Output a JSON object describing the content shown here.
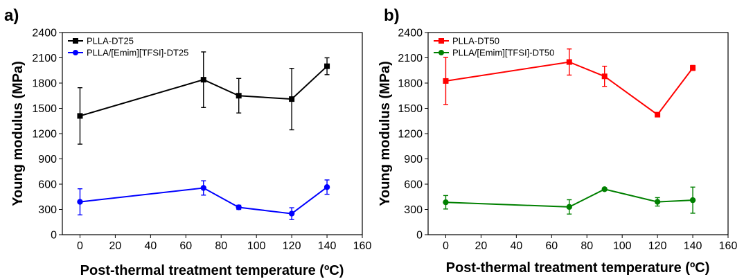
{
  "chart_data": [
    {
      "type": "line",
      "panel_label": "a)",
      "xlabel": "Post-thermal treatment temperature (ºC)",
      "ylabel": "Young modulus (MPa)",
      "xlim": [
        -10,
        160
      ],
      "ylim": [
        0,
        2400
      ],
      "xticks": [
        "0",
        "20",
        "40",
        "60",
        "80",
        "100",
        "120",
        "140",
        "160"
      ],
      "yticks": [
        "0",
        "300",
        "600",
        "900",
        "1200",
        "1500",
        "1800",
        "2100",
        "2400"
      ],
      "legend_position": "top-left",
      "series": [
        {
          "name": "PLLA-DT25",
          "color": "#000000",
          "marker": "square",
          "x": [
            0,
            70,
            90,
            120,
            140
          ],
          "y": [
            1410,
            1840,
            1650,
            1610,
            2000
          ],
          "err": [
            335,
            330,
            205,
            365,
            100
          ]
        },
        {
          "name": "PLLA/[Emim][TFSI]-DT25",
          "color": "#0000ff",
          "marker": "circle",
          "x": [
            0,
            70,
            90,
            120,
            140
          ],
          "y": [
            390,
            555,
            325,
            250,
            565
          ],
          "err": [
            155,
            85,
            25,
            70,
            85
          ]
        }
      ]
    },
    {
      "type": "line",
      "panel_label": "b)",
      "xlabel": "Post-thermal treatment temperature (ºC)",
      "ylabel": "Young modulus (MPa)",
      "xlim": [
        -10,
        160
      ],
      "ylim": [
        0,
        2400
      ],
      "xticks": [
        "0",
        "20",
        "40",
        "60",
        "80",
        "100",
        "120",
        "140",
        "160"
      ],
      "yticks": [
        "0",
        "300",
        "600",
        "900",
        "1200",
        "1500",
        "1800",
        "2100",
        "2400"
      ],
      "legend_position": "top-left",
      "series": [
        {
          "name": "PLLA-DT50",
          "color": "#ff0000",
          "marker": "square",
          "x": [
            0,
            70,
            90,
            120,
            140
          ],
          "y": [
            1825,
            2050,
            1880,
            1425,
            1980
          ],
          "err": [
            280,
            155,
            120,
            15,
            30
          ]
        },
        {
          "name": "PLLA/[Emim][TFSI]-DT50",
          "color": "#008000",
          "marker": "circle",
          "x": [
            0,
            70,
            90,
            120,
            140
          ],
          "y": [
            385,
            330,
            540,
            390,
            410
          ],
          "err": [
            80,
            85,
            15,
            50,
            155
          ]
        }
      ]
    }
  ]
}
